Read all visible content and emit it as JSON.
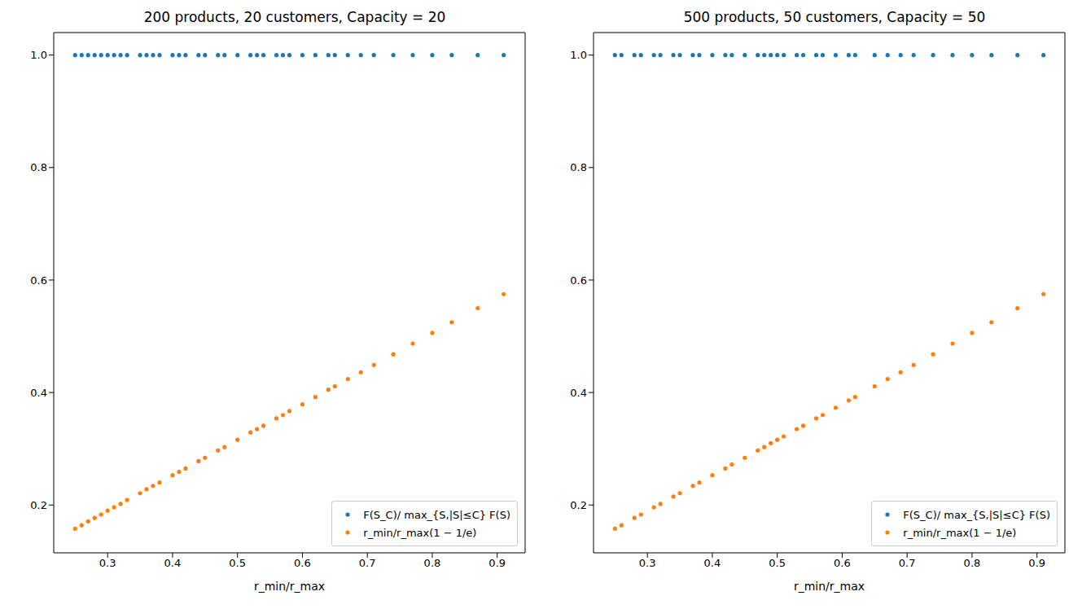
{
  "chart_data": [
    {
      "type": "scatter",
      "title": "200 products, 20 customers, Capacity = 20",
      "x_label": "r_min/r_max",
      "x": [
        0.25,
        0.26,
        0.27,
        0.28,
        0.29,
        0.3,
        0.31,
        0.32,
        0.33,
        0.35,
        0.36,
        0.37,
        0.38,
        0.4,
        0.41,
        0.42,
        0.44,
        0.45,
        0.47,
        0.48,
        0.5,
        0.52,
        0.53,
        0.54,
        0.56,
        0.57,
        0.58,
        0.6,
        0.62,
        0.64,
        0.65,
        0.67,
        0.69,
        0.71,
        0.74,
        0.77,
        0.8,
        0.83,
        0.87,
        0.91
      ],
      "series": [
        {
          "name": "F(S_C)/ max_{S,|S|≤C} F(S)",
          "color": "#1f77b4",
          "marker": "circle",
          "values": [
            1,
            1,
            1,
            1,
            1,
            1,
            1,
            1,
            1,
            1,
            1,
            1,
            1,
            1,
            1,
            1,
            1,
            1,
            1,
            1,
            1,
            1,
            1,
            1,
            1,
            1,
            1,
            1,
            1,
            1,
            1,
            1,
            1,
            1,
            1,
            1,
            1,
            1,
            1,
            1
          ]
        },
        {
          "name": "r_min/r_max(1 − 1/e)",
          "color": "#ff7f0e",
          "marker": "circle",
          "values": [
            0.158,
            0.164,
            0.171,
            0.177,
            0.183,
            0.19,
            0.196,
            0.202,
            0.209,
            0.221,
            0.228,
            0.234,
            0.24,
            0.253,
            0.259,
            0.265,
            0.278,
            0.284,
            0.297,
            0.303,
            0.316,
            0.329,
            0.335,
            0.341,
            0.354,
            0.36,
            0.367,
            0.379,
            0.392,
            0.405,
            0.411,
            0.424,
            0.436,
            0.449,
            0.468,
            0.487,
            0.506,
            0.525,
            0.55,
            0.575
          ]
        }
      ],
      "xlim": [
        0.217,
        0.943
      ],
      "xticks": [
        0.3,
        0.4,
        0.5,
        0.6,
        0.7,
        0.8,
        0.9
      ],
      "ylim": [
        0.115,
        1.04
      ],
      "yticks": [
        0.2,
        0.4,
        0.6,
        0.8,
        {
          "value": 1,
          "label": "1.0"
        }
      ],
      "legend": "lower right"
    },
    {
      "type": "scatter",
      "title": "500 products, 50 customers, Capacity = 50",
      "x_label": "r_min/r_max",
      "x": [
        0.25,
        0.26,
        0.28,
        0.29,
        0.31,
        0.32,
        0.34,
        0.35,
        0.37,
        0.38,
        0.4,
        0.42,
        0.43,
        0.45,
        0.47,
        0.48,
        0.49,
        0.5,
        0.51,
        0.53,
        0.54,
        0.56,
        0.57,
        0.59,
        0.61,
        0.62,
        0.65,
        0.67,
        0.69,
        0.71,
        0.74,
        0.77,
        0.8,
        0.83,
        0.87,
        0.91
      ],
      "series": [
        {
          "name": "F(S_C)/ max_{S,|S|≤C} F(S)",
          "color": "#1f77b4",
          "marker": "circle",
          "values": [
            1,
            1,
            1,
            1,
            1,
            1,
            1,
            1,
            1,
            1,
            1,
            1,
            1,
            1,
            1,
            1,
            1,
            1,
            1,
            1,
            1,
            1,
            1,
            1,
            1,
            1,
            1,
            1,
            1,
            1,
            1,
            1,
            1,
            1,
            1,
            1
          ]
        },
        {
          "name": "r_min/r_max(1 − 1/e)",
          "color": "#ff7f0e",
          "marker": "circle",
          "values": [
            0.158,
            0.164,
            0.177,
            0.183,
            0.196,
            0.202,
            0.215,
            0.221,
            0.234,
            0.24,
            0.253,
            0.265,
            0.272,
            0.284,
            0.297,
            0.303,
            0.31,
            0.316,
            0.322,
            0.335,
            0.341,
            0.354,
            0.36,
            0.373,
            0.386,
            0.392,
            0.411,
            0.424,
            0.436,
            0.449,
            0.468,
            0.487,
            0.506,
            0.525,
            0.55,
            0.575
          ]
        }
      ],
      "xlim": [
        0.217,
        0.943
      ],
      "xticks": [
        0.3,
        0.4,
        0.5,
        0.6,
        0.7,
        0.8,
        0.9
      ],
      "ylim": [
        0.115,
        1.04
      ],
      "yticks": [
        0.2,
        0.4,
        0.6,
        0.8,
        {
          "value": 1,
          "label": "1.0"
        }
      ],
      "legend": "lower right"
    }
  ]
}
